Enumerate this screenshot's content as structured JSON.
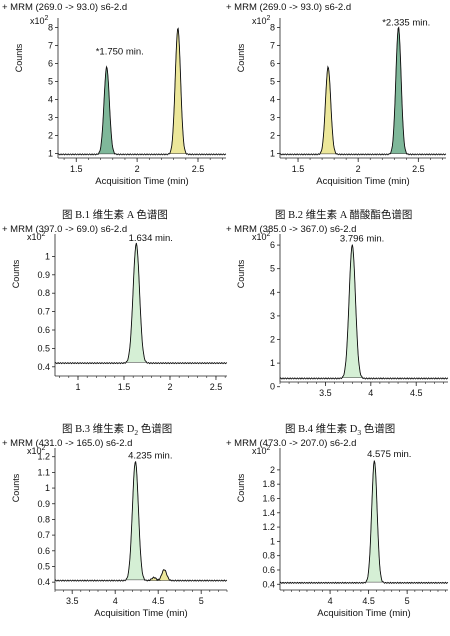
{
  "figure": {
    "captions": [
      {
        "text": "图  B.1 维生素 A 色谱图",
        "sub": ""
      },
      {
        "text": "图  B.2 维生素 A 醋酸酯色谱图",
        "sub": ""
      },
      {
        "text_before": "图  B.3 维生素 D",
        "sub": "2",
        "text_after": " 色谱图"
      },
      {
        "text_before": "图  B.4  维生素 D",
        "sub": "3",
        "text_after": " 色谱图"
      }
    ]
  },
  "chart_data": [
    {
      "type": "line",
      "header": "+ MRM (269.0 -> 93.0) s6-2.d",
      "ylabel": "Counts",
      "multiplier": "x10",
      "multiplier_exp": "2",
      "xlabel": "Acquisition Time (min)",
      "xlim": [
        1.35,
        2.73
      ],
      "ylim": [
        0.75,
        8.3
      ],
      "xticks": [
        1.5,
        2,
        2.5
      ],
      "xtick_labels": [
        "1.5",
        "2",
        "2.5"
      ],
      "yticks": [
        1,
        2,
        3,
        4,
        5,
        6,
        7,
        8
      ],
      "baseline": 0.95,
      "peaks": [
        {
          "rt": 1.75,
          "height": 5.8,
          "sigma": 0.022,
          "fill": "#7fb89a"
        },
        {
          "rt": 2.335,
          "height": 7.95,
          "sigma": 0.022,
          "fill": "#ece79a"
        }
      ],
      "annotation": {
        "text": "*1.750 min.",
        "x": 1.66,
        "y": 6.5
      }
    },
    {
      "type": "line",
      "header": "+ MRM (269.0 -> 93.0) s6-2.d",
      "ylabel": "Counts",
      "multiplier": "x10",
      "multiplier_exp": "2",
      "xlabel": "Acquisition Time (min)",
      "xlim": [
        1.35,
        2.73
      ],
      "ylim": [
        0.75,
        8.3
      ],
      "xticks": [
        1.5,
        2,
        2.5
      ],
      "xtick_labels": [
        "1.5",
        "2",
        "2.5"
      ],
      "yticks": [
        1,
        2,
        3,
        4,
        5,
        6,
        7,
        8
      ],
      "baseline": 0.95,
      "peaks": [
        {
          "rt": 1.75,
          "height": 5.8,
          "sigma": 0.022,
          "fill": "#ece79a"
        },
        {
          "rt": 2.335,
          "height": 8.0,
          "sigma": 0.022,
          "fill": "#7fb89a"
        }
      ],
      "annotation": {
        "text": "*2.335 min.",
        "x": 2.2,
        "y": 8.1
      }
    },
    {
      "type": "line",
      "header": "+ MRM (397.0 -> 69.0) s6-2.d",
      "ylabel": "Counts",
      "multiplier": "x10",
      "multiplier_exp": "2",
      "xlabel": "",
      "xlim": [
        0.75,
        2.62
      ],
      "ylim": [
        0.35,
        1.1
      ],
      "xticks": [
        1,
        1.5,
        2,
        2.5
      ],
      "xtick_labels": [
        "1",
        "1.5",
        "2",
        "2.5"
      ],
      "yticks": [
        0.4,
        0.5,
        0.6,
        0.7,
        0.8,
        0.9,
        1
      ],
      "baseline": 0.42,
      "peaks": [
        {
          "rt": 1.634,
          "height": 1.07,
          "sigma": 0.035,
          "fill": "#d5efd5"
        }
      ],
      "annotation": {
        "text": "1.634 min.",
        "x": 1.55,
        "y": 1.085
      }
    },
    {
      "type": "line",
      "header": "+ MRM (385.0 -> 367.0) s6-2.d",
      "ylabel": "Counts",
      "multiplier": "x10",
      "multiplier_exp": "2",
      "xlabel": "",
      "xlim": [
        3.0,
        4.85
      ],
      "ylim": [
        0.2,
        6.3
      ],
      "xticks": [
        3.5,
        4,
        4.5
      ],
      "xtick_labels": [
        "3.5",
        "4",
        "4.5"
      ],
      "yticks": [
        0,
        1,
        2,
        3,
        4,
        5,
        6
      ],
      "baseline": 0.35,
      "peaks": [
        {
          "rt": 3.796,
          "height": 6.0,
          "sigma": 0.035,
          "fill": "#d5efd5"
        }
      ],
      "annotation": {
        "text": "3.796 min.",
        "x": 3.66,
        "y": 6.15
      }
    },
    {
      "type": "line",
      "header": "+ MRM (431.0 -> 165.0) s6-2.d",
      "ylabel": "Counts",
      "multiplier": "x10",
      "multiplier_exp": "2",
      "xlabel": "Acquisition Time (min)",
      "xlim": [
        3.3,
        5.3
      ],
      "ylim": [
        0.35,
        1.23
      ],
      "xticks": [
        3.5,
        4,
        4.5,
        5
      ],
      "xtick_labels": [
        "3.5",
        "4",
        "4.5",
        "5"
      ],
      "yticks": [
        0.4,
        0.5,
        0.6,
        0.7,
        0.8,
        0.9,
        1,
        1.1,
        1.2
      ],
      "baseline": 0.41,
      "peaks": [
        {
          "rt": 4.235,
          "height": 1.17,
          "sigma": 0.035,
          "fill": "#d5efd5"
        },
        {
          "rt": 4.45,
          "height": 0.43,
          "sigma": 0.025,
          "fill": "#ece79a"
        },
        {
          "rt": 4.57,
          "height": 0.48,
          "sigma": 0.028,
          "fill": "#ece79a"
        }
      ],
      "annotation": {
        "text": "4.235 min.",
        "x": 4.15,
        "y": 1.19
      }
    },
    {
      "type": "line",
      "header": "+ MRM (473.0 -> 207.0) s6-2.d",
      "ylabel": "Counts",
      "multiplier": "x10",
      "multiplier_exp": "2",
      "xlabel": "Acquisition Time (min)",
      "xlim": [
        3.35,
        5.53
      ],
      "ylim": [
        0.32,
        2.25
      ],
      "xticks": [
        4,
        4.5,
        5
      ],
      "xtick_labels": [
        "4",
        "4.5",
        "5"
      ],
      "yticks": [
        0.4,
        0.6,
        0.8,
        1,
        1.2,
        1.4,
        1.6,
        1.8,
        2
      ],
      "baseline": 0.42,
      "peaks": [
        {
          "rt": 4.575,
          "height": 2.13,
          "sigma": 0.035,
          "fill": "#d5efd5"
        }
      ],
      "annotation": {
        "text": "4.575 min.",
        "x": 4.48,
        "y": 2.18
      }
    }
  ]
}
